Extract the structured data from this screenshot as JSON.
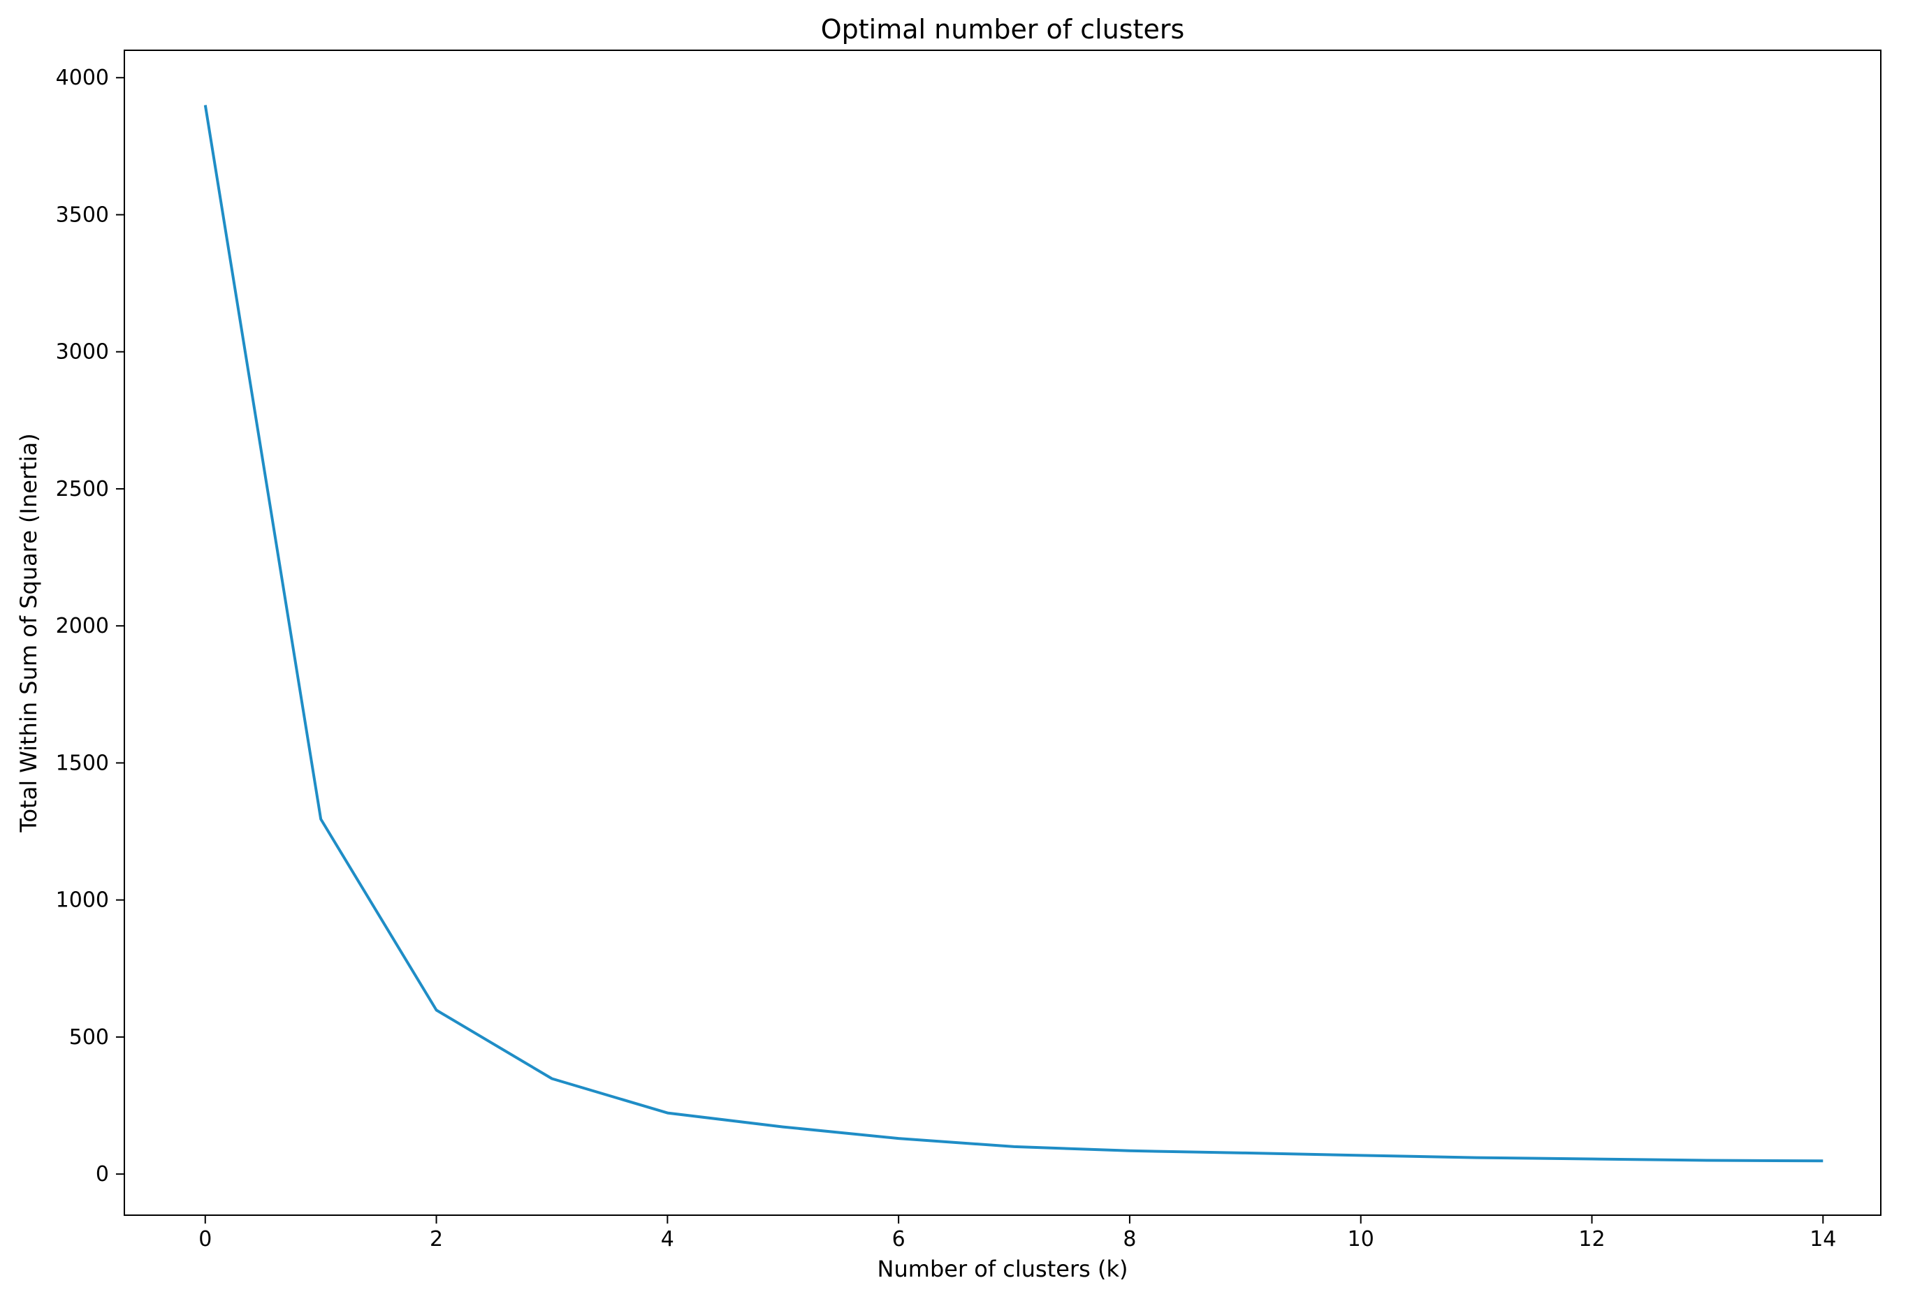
{
  "chart_data": {
    "type": "line",
    "title": "Optimal number of clusters",
    "xlabel": "Number of clusters (k)",
    "ylabel": "Total Within Sum of Square (Inertia)",
    "xlim": [
      -0.7,
      14.5
    ],
    "ylim": [
      -150,
      4100
    ],
    "xticks": [
      0,
      2,
      4,
      6,
      8,
      10,
      12,
      14
    ],
    "yticks": [
      0,
      500,
      1000,
      1500,
      2000,
      2500,
      3000,
      3500,
      4000
    ],
    "grid": false,
    "legend": "none",
    "series": [
      {
        "color": "#1f8dc6",
        "x": [
          0,
          1,
          2,
          3,
          4,
          5,
          6,
          7,
          8,
          9,
          10,
          11,
          12,
          13,
          14
        ],
        "y": [
          3900,
          1295,
          598,
          348,
          223,
          172,
          130,
          100,
          85,
          77,
          68,
          60,
          55,
          50,
          48
        ]
      }
    ]
  }
}
